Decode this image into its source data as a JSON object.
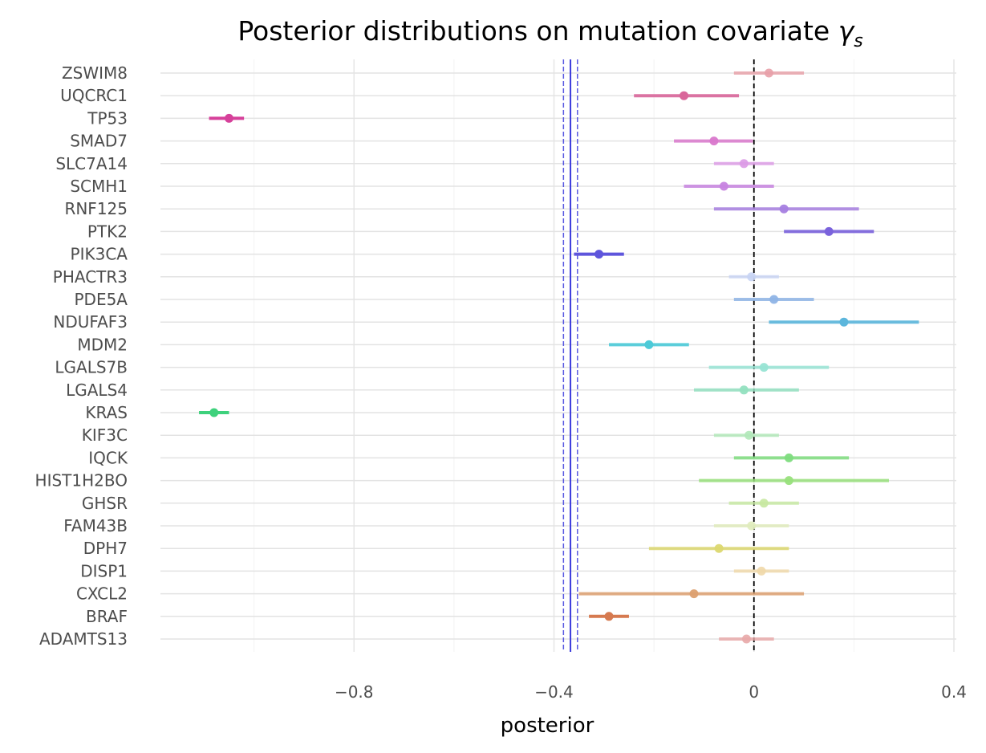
{
  "chart_data": {
    "type": "forest",
    "title": "Posterior distributions on mutation covariate ",
    "title_symbol": "γ",
    "title_subscript": "s",
    "xlabel": "posterior",
    "xlim": [
      -1.2,
      0.4
    ],
    "xticks": [
      -0.8,
      -0.4,
      0,
      0.4
    ],
    "xtick_labels": [
      "−0.8",
      "−0.4",
      "0",
      "0.4"
    ],
    "grid": true,
    "zero_line": 0,
    "reference_lines": {
      "center": -0.367,
      "lower": -0.381,
      "upper": -0.353,
      "color": "#3b3bdc"
    },
    "genes": [
      {
        "name": "ZSWIM8",
        "mean": 0.03,
        "lower": -0.04,
        "upper": 0.1,
        "color": "#e8a0a8",
        "opacity": 0.8
      },
      {
        "name": "UQCRC1",
        "mean": -0.14,
        "lower": -0.24,
        "upper": -0.03,
        "color": "#d9669a",
        "opacity": 0.9
      },
      {
        "name": "TP53",
        "mean": -1.05,
        "lower": -1.09,
        "upper": -1.02,
        "color": "#d6409a",
        "opacity": 1.0
      },
      {
        "name": "SMAD7",
        "mean": -0.08,
        "lower": -0.16,
        "upper": -0.002,
        "color": "#d978cc",
        "opacity": 0.85
      },
      {
        "name": "SLC7A14",
        "mean": -0.02,
        "lower": -0.08,
        "upper": 0.04,
        "color": "#dc9ae6",
        "opacity": 0.8
      },
      {
        "name": "SCMH1",
        "mean": -0.06,
        "lower": -0.14,
        "upper": 0.04,
        "color": "#c784e0",
        "opacity": 0.85
      },
      {
        "name": "RNF125",
        "mean": 0.06,
        "lower": -0.08,
        "upper": 0.21,
        "color": "#a77fe0",
        "opacity": 0.85
      },
      {
        "name": "PTK2",
        "mean": 0.15,
        "lower": 0.06,
        "upper": 0.24,
        "color": "#7a62dc",
        "opacity": 0.9
      },
      {
        "name": "PIK3CA",
        "mean": -0.31,
        "lower": -0.36,
        "upper": -0.26,
        "color": "#5e55dc",
        "opacity": 1.0
      },
      {
        "name": "PHACTR3",
        "mean": -0.005,
        "lower": -0.05,
        "upper": 0.05,
        "color": "#c8d4f4",
        "opacity": 0.8
      },
      {
        "name": "PDE5A",
        "mean": 0.04,
        "lower": -0.04,
        "upper": 0.12,
        "color": "#8fb4e6",
        "opacity": 0.85
      },
      {
        "name": "NDUFAF3",
        "mean": 0.18,
        "lower": 0.03,
        "upper": 0.33,
        "color": "#5cb6dc",
        "opacity": 0.9
      },
      {
        "name": "MDM2",
        "mean": -0.21,
        "lower": -0.29,
        "upper": -0.13,
        "color": "#4ccad8",
        "opacity": 0.9
      },
      {
        "name": "LGALS7B",
        "mean": 0.02,
        "lower": -0.09,
        "upper": 0.15,
        "color": "#98e4d4",
        "opacity": 0.85
      },
      {
        "name": "LGALS4",
        "mean": -0.02,
        "lower": -0.12,
        "upper": 0.09,
        "color": "#94e0c0",
        "opacity": 0.85
      },
      {
        "name": "KRAS",
        "mean": -1.08,
        "lower": -1.11,
        "upper": -1.05,
        "color": "#3ed17c",
        "opacity": 1.0
      },
      {
        "name": "KIF3C",
        "mean": -0.01,
        "lower": -0.08,
        "upper": 0.05,
        "color": "#b0e8b8",
        "opacity": 0.8
      },
      {
        "name": "IQCK",
        "mean": 0.07,
        "lower": -0.04,
        "upper": 0.19,
        "color": "#7edc7e",
        "opacity": 0.85
      },
      {
        "name": "HIST1H2BO",
        "mean": 0.07,
        "lower": -0.11,
        "upper": 0.27,
        "color": "#98e07c",
        "opacity": 0.85
      },
      {
        "name": "GHSR",
        "mean": 0.02,
        "lower": -0.05,
        "upper": 0.09,
        "color": "#c6e8a0",
        "opacity": 0.8
      },
      {
        "name": "FAM43B",
        "mean": -0.005,
        "lower": -0.08,
        "upper": 0.07,
        "color": "#e0ecbc",
        "opacity": 0.8
      },
      {
        "name": "DPH7",
        "mean": -0.07,
        "lower": -0.21,
        "upper": 0.07,
        "color": "#dcd870",
        "opacity": 0.85
      },
      {
        "name": "DISP1",
        "mean": 0.015,
        "lower": -0.04,
        "upper": 0.07,
        "color": "#f0d8a8",
        "opacity": 0.8
      },
      {
        "name": "CXCL2",
        "mean": -0.12,
        "lower": -0.35,
        "upper": 0.1,
        "color": "#dca070",
        "opacity": 0.85
      },
      {
        "name": "BRAF",
        "mean": -0.29,
        "lower": -0.33,
        "upper": -0.25,
        "color": "#d67a50",
        "opacity": 1.0
      },
      {
        "name": "ADAMTS13",
        "mean": -0.015,
        "lower": -0.07,
        "upper": 0.04,
        "color": "#e8a8a8",
        "opacity": 0.8
      }
    ]
  }
}
